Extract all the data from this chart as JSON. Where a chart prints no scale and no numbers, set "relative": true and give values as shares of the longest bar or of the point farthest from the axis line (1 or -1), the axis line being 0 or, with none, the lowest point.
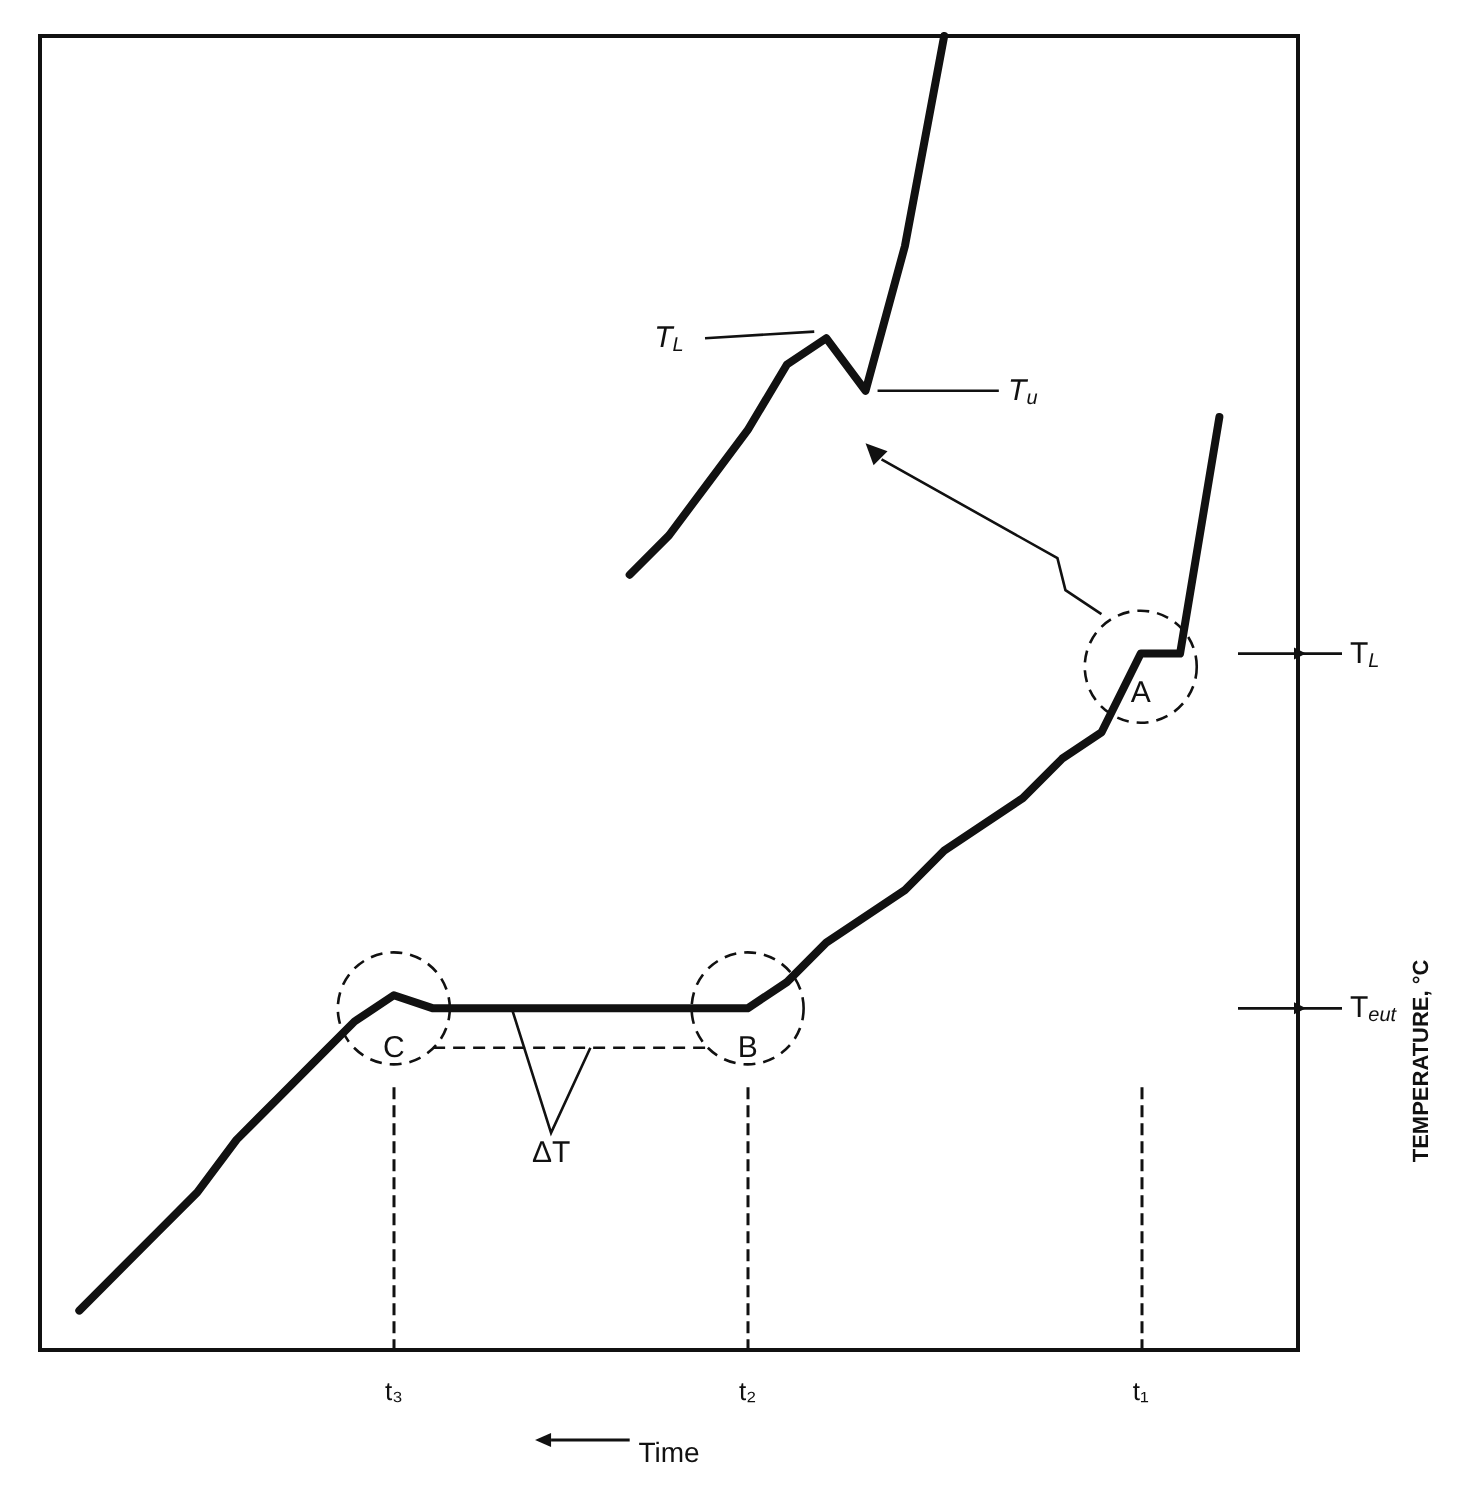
{
  "chart_data": {
    "type": "line",
    "relative": true,
    "xlabel": "Time",
    "categories": [
      null,
      null,
      null,
      null,
      null,
      null,
      null,
      null,
      null,
      "t₃",
      null,
      null,
      null,
      null,
      null,
      null,
      null,
      null,
      "t₂",
      null,
      null,
      null,
      null,
      null,
      null,
      null,
      null,
      null,
      "t₁",
      null,
      null,
      null,
      null
    ],
    "series": [
      {
        "color": "#111111",
        "values": [
          null,
          0.03,
          0.06,
          0.09,
          0.12,
          0.16,
          0.19,
          0.22,
          0.25,
          0.27,
          0.26,
          0.26,
          0.26,
          0.26,
          0.26,
          0.26,
          0.26,
          0.26,
          0.26,
          0.28,
          0.31,
          0.33,
          0.35,
          0.38,
          0.4,
          0.42,
          0.45,
          0.47,
          0.53,
          0.53,
          0.71,
          null,
          null
        ]
      },
      {
        "color": "#111111",
        "values": [
          null,
          null,
          null,
          null,
          null,
          null,
          null,
          null,
          null,
          null,
          null,
          null,
          null,
          null,
          null,
          0.59,
          0.62,
          0.66,
          0.7,
          0.75,
          0.77,
          0.73,
          0.84,
          1,
          null,
          null,
          null,
          null,
          null,
          null,
          null,
          null,
          null
        ]
      }
    ],
    "ref_lines": [
      {
        "axis": "x",
        "value": "t₃",
        "line_style": "dashed",
        "color": "#111111"
      },
      {
        "axis": "x",
        "value": "t₂",
        "line_style": "dashed",
        "color": "#111111"
      },
      {
        "axis": "x",
        "value": "t₁",
        "line_style": "dashed",
        "color": "#111111"
      }
    ],
    "annotations": [
      "T$_{L}$",
      "T$_{u}$",
      "A",
      "B",
      "C",
      "ΔT",
      "T$_{L}$",
      "T$_{eut}$",
      "TEMPERATURE, °C"
    ],
    "grid": false,
    "marker": "none",
    "line_style": "solid",
    "tick_labels": "x"
  }
}
